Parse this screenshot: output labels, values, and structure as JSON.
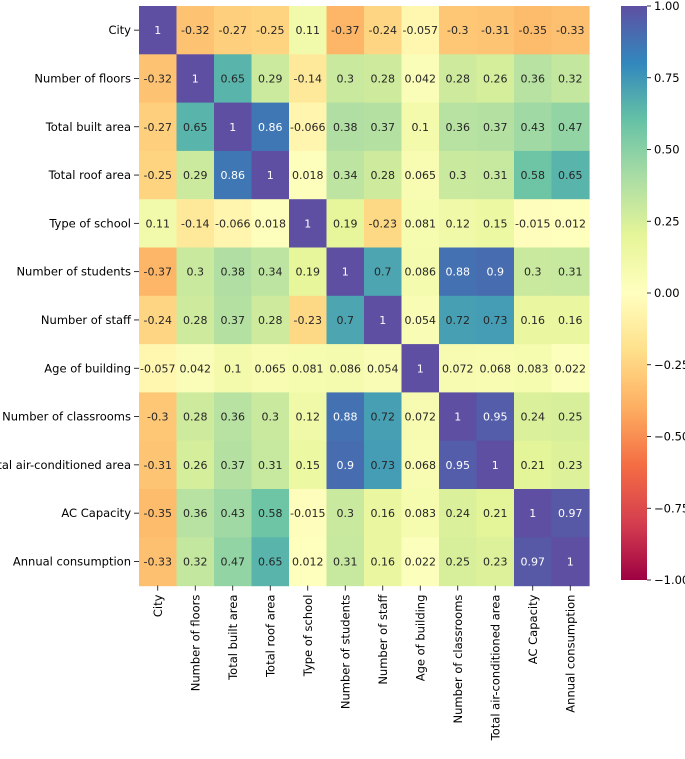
{
  "chart_data": {
    "type": "heatmap",
    "title": "",
    "row_labels": [
      "City",
      "Number of floors",
      "Total built area",
      "Total roof area",
      "Type of school",
      "Number of students",
      "Number of staff",
      "Age of building",
      "Number of classrooms",
      "Total air-conditioned area",
      "AC Capacity",
      "Annual consumption"
    ],
    "col_labels": [
      "City",
      "Number of floors",
      "Total built area",
      "Total roof area",
      "Type of school",
      "Number of students",
      "Number of staff",
      "Age of building",
      "Number of classrooms",
      "Total air-conditioned area",
      "AC Capacity",
      "Annual consumption"
    ],
    "values": [
      [
        1,
        -0.32,
        -0.27,
        -0.25,
        0.11,
        -0.37,
        -0.24,
        -0.057,
        -0.3,
        -0.31,
        -0.35,
        -0.33
      ],
      [
        -0.32,
        1,
        0.65,
        0.29,
        -0.14,
        0.3,
        0.28,
        0.042,
        0.28,
        0.26,
        0.36,
        0.32
      ],
      [
        -0.27,
        0.65,
        1,
        0.86,
        -0.066,
        0.38,
        0.37,
        0.1,
        0.36,
        0.37,
        0.43,
        0.47
      ],
      [
        -0.25,
        0.29,
        0.86,
        1,
        0.018,
        0.34,
        0.28,
        0.065,
        0.3,
        0.31,
        0.58,
        0.65
      ],
      [
        0.11,
        -0.14,
        -0.066,
        0.018,
        1,
        0.19,
        -0.23,
        0.081,
        0.12,
        0.15,
        -0.015,
        0.012
      ],
      [
        -0.37,
        0.3,
        0.38,
        0.34,
        0.19,
        1,
        0.7,
        0.086,
        0.88,
        0.9,
        0.3,
        0.31
      ],
      [
        -0.24,
        0.28,
        0.37,
        0.28,
        -0.23,
        0.7,
        1,
        0.054,
        0.72,
        0.73,
        0.16,
        0.16
      ],
      [
        -0.057,
        0.042,
        0.1,
        0.065,
        0.081,
        0.086,
        0.054,
        1,
        0.072,
        0.068,
        0.083,
        0.022
      ],
      [
        -0.3,
        0.28,
        0.36,
        0.3,
        0.12,
        0.88,
        0.72,
        0.072,
        1,
        0.95,
        0.24,
        0.25
      ],
      [
        -0.31,
        0.26,
        0.37,
        0.31,
        0.15,
        0.9,
        0.73,
        0.068,
        0.95,
        1,
        0.21,
        0.23
      ],
      [
        -0.35,
        0.36,
        0.43,
        0.58,
        -0.015,
        0.3,
        0.16,
        0.083,
        0.24,
        0.21,
        1,
        0.97
      ],
      [
        -0.33,
        0.32,
        0.47,
        0.65,
        0.012,
        0.31,
        0.16,
        0.022,
        0.25,
        0.23,
        0.97,
        1
      ]
    ],
    "colormap": "Spectral",
    "vmin": -1,
    "vmax": 1,
    "colorbar_ticks": [
      1.0,
      0.75,
      0.5,
      0.25,
      0.0,
      -0.25,
      -0.5,
      -0.75,
      -1.0
    ],
    "colorbar_tick_labels": [
      "1.00",
      "0.75",
      "0.50",
      "0.25",
      "0.00",
      "−0.25",
      "−0.50",
      "−0.75",
      "−1.00"
    ]
  }
}
